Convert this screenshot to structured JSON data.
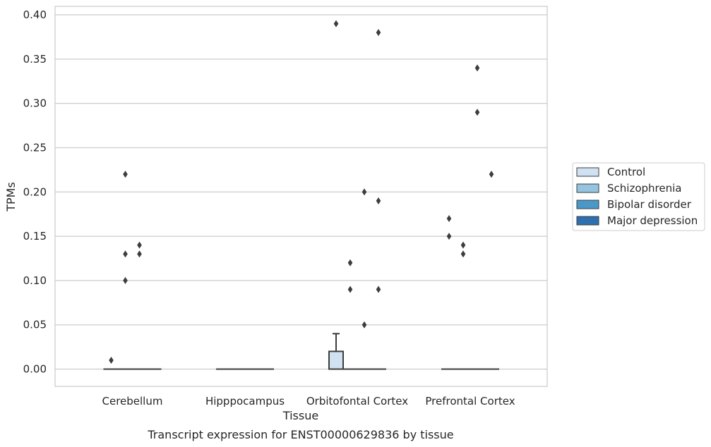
{
  "chart_data": {
    "type": "box",
    "title": "",
    "caption": "Transcript expression for ENST00000629836 by tissue",
    "xlabel": "Tissue",
    "ylabel": "TPMs",
    "ylim": [
      -0.019,
      0.41
    ],
    "yticks": [
      "0.00",
      "0.05",
      "0.10",
      "0.15",
      "0.20",
      "0.25",
      "0.30",
      "0.35",
      "0.40"
    ],
    "ytick_values": [
      0,
      0.05,
      0.1,
      0.15,
      0.2,
      0.25,
      0.3,
      0.35,
      0.4
    ],
    "grid": "horizontal",
    "legend_position": "center-right outside",
    "categories": [
      "Cerebellum",
      "Hipppocampus",
      "Orbitofontal Cortex",
      "Prefrontal Cortex"
    ],
    "series": [
      {
        "name": "Control",
        "color": "#d0e1f2",
        "boxes": [
          {
            "q1": 0,
            "median": 0,
            "q3": 0,
            "whisker_low": 0,
            "whisker_high": 0,
            "outliers": [
              0.01
            ]
          },
          {
            "q1": 0,
            "median": 0,
            "q3": 0,
            "whisker_low": 0,
            "whisker_high": 0,
            "outliers": []
          },
          {
            "q1": 0,
            "median": 0,
            "q3": 0.02,
            "whisker_low": 0,
            "whisker_high": 0.04,
            "outliers": [
              0.39
            ]
          },
          {
            "q1": 0,
            "median": 0,
            "q3": 0,
            "whisker_low": 0,
            "whisker_high": 0,
            "outliers": [
              0.17,
              0.15
            ]
          }
        ]
      },
      {
        "name": "Schizophrenia",
        "color": "#94c4df",
        "boxes": [
          {
            "q1": 0,
            "median": 0,
            "q3": 0,
            "whisker_low": 0,
            "whisker_high": 0,
            "outliers": [
              0.22,
              0.13,
              0.1
            ]
          },
          {
            "q1": 0,
            "median": 0,
            "q3": 0,
            "whisker_low": 0,
            "whisker_high": 0,
            "outliers": []
          },
          {
            "q1": 0,
            "median": 0,
            "q3": 0,
            "whisker_low": 0,
            "whisker_high": 0,
            "outliers": [
              0.12,
              0.09
            ]
          },
          {
            "q1": 0,
            "median": 0,
            "q3": 0,
            "whisker_low": 0,
            "whisker_high": 0,
            "outliers": [
              0.14,
              0.13
            ]
          }
        ]
      },
      {
        "name": "Bipolar disorder",
        "color": "#4a98c9",
        "boxes": [
          {
            "q1": 0,
            "median": 0,
            "q3": 0,
            "whisker_low": 0,
            "whisker_high": 0,
            "outliers": [
              0.14,
              0.13
            ]
          },
          {
            "q1": 0,
            "median": 0,
            "q3": 0,
            "whisker_low": 0,
            "whisker_high": 0,
            "outliers": []
          },
          {
            "q1": 0,
            "median": 0,
            "q3": 0,
            "whisker_low": 0,
            "whisker_high": 0,
            "outliers": [
              0.2,
              0.05
            ]
          },
          {
            "q1": 0,
            "median": 0,
            "q3": 0,
            "whisker_low": 0,
            "whisker_high": 0,
            "outliers": [
              0.34,
              0.29
            ]
          }
        ]
      },
      {
        "name": "Major depression",
        "color": "#2e6faf",
        "boxes": [
          {
            "q1": 0,
            "median": 0,
            "q3": 0,
            "whisker_low": 0,
            "whisker_high": 0,
            "outliers": []
          },
          {
            "q1": 0,
            "median": 0,
            "q3": 0,
            "whisker_low": 0,
            "whisker_high": 0,
            "outliers": []
          },
          {
            "q1": 0,
            "median": 0,
            "q3": 0,
            "whisker_low": 0,
            "whisker_high": 0,
            "outliers": [
              0.38,
              0.19,
              0.09
            ]
          },
          {
            "q1": 0,
            "median": 0,
            "q3": 0,
            "whisker_low": 0,
            "whisker_high": 0,
            "outliers": [
              0.22
            ]
          }
        ]
      }
    ]
  }
}
